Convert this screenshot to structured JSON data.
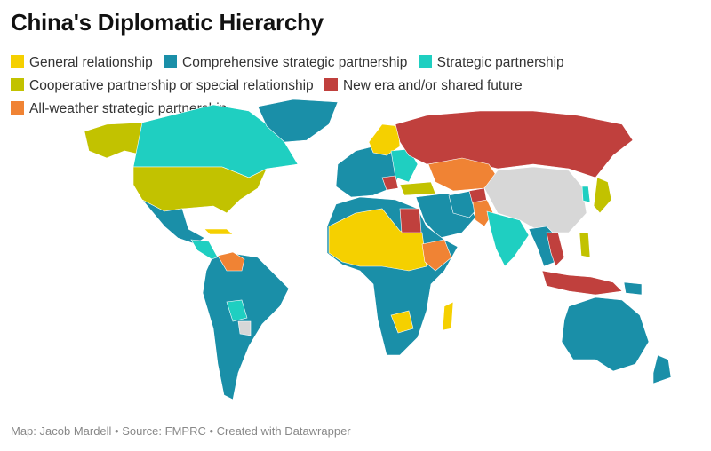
{
  "title": "China's Diplomatic Hierarchy",
  "legend": [
    {
      "label": "General relationship",
      "color": "#f5d000"
    },
    {
      "label": "Comprehensive strategic partnership",
      "color": "#1a8fa8"
    },
    {
      "label": "Strategic partnership",
      "color": "#1fcfc1"
    },
    {
      "label": "Cooperative partnership or special relationship",
      "color": "#c2c200"
    },
    {
      "label": "New era and/or shared future",
      "color": "#c0403d"
    },
    {
      "label": "All-weather strategic partnership",
      "color": "#f08334"
    }
  ],
  "no_data_color": "#d7d7d7",
  "footer": "Map: Jacob Mardell • Source: FMPRC • Created with Datawrapper"
}
